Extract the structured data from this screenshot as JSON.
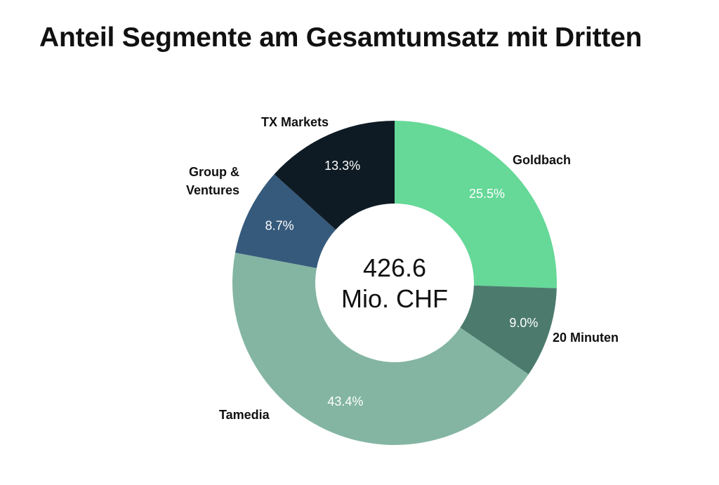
{
  "colors": {
    "Goldbach": "#66d898",
    "20 Minuten": "#4c7b6e",
    "Tamedia": "#84b5a3",
    "Group & Ventures": "#365a7c",
    "TX Markets": "#0f1b24",
    "background": "#ffffff"
  },
  "chart_data": {
    "type": "pie",
    "variant": "donut",
    "title": "Anteil Segmente am Gesamtumsatz mit Dritten",
    "center_label": [
      "426.6",
      "Mio. CHF"
    ],
    "categories": [
      "Goldbach",
      "20 Minuten",
      "Tamedia",
      "Group & Ventures",
      "TX Markets"
    ],
    "values": [
      25.5,
      9.0,
      43.4,
      8.7,
      13.3
    ],
    "value_labels": [
      "25.5%",
      "9.0%",
      "43.4%",
      "8.7%",
      "13.3%"
    ],
    "segment_labels": [
      [
        "Goldbach"
      ],
      [
        "20 Minuten"
      ],
      [
        "Tamedia"
      ],
      [
        "Group &",
        "Ventures"
      ],
      [
        "TX Markets"
      ]
    ],
    "unit": "%",
    "start": "12 o'clock",
    "direction": "clockwise",
    "legend": "none"
  }
}
